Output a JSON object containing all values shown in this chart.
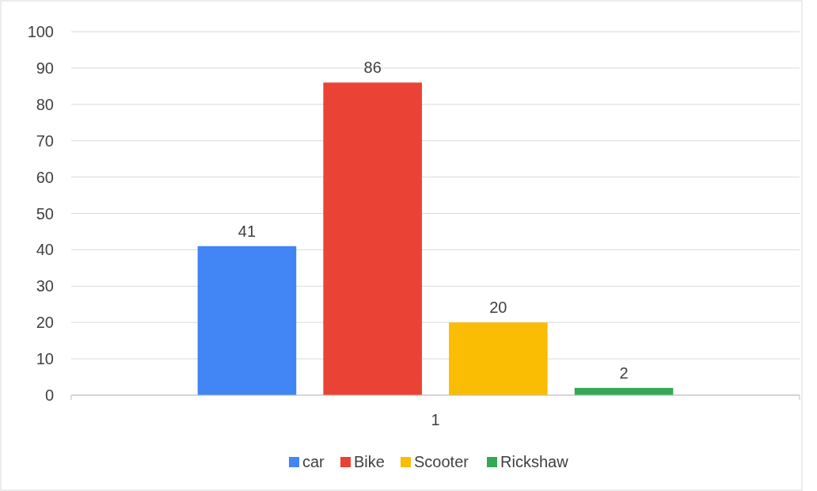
{
  "chart_data": {
    "type": "bar",
    "categories": [
      "1"
    ],
    "series": [
      {
        "name": "car",
        "color": "#4285f4",
        "values": [
          41
        ]
      },
      {
        "name": "Bike",
        "color": "#ea4335",
        "values": [
          86
        ]
      },
      {
        "name": "Scooter",
        "color": "#fbbc04",
        "values": [
          20
        ]
      },
      {
        "name": "Rickshaw",
        "color": "#34a853",
        "values": [
          2
        ]
      }
    ],
    "ylim": [
      0,
      100
    ],
    "yticks": [
      0,
      10,
      20,
      30,
      40,
      50,
      60,
      70,
      80,
      90,
      100
    ],
    "grid": "y",
    "legend": "bottom",
    "data_labels": true
  }
}
